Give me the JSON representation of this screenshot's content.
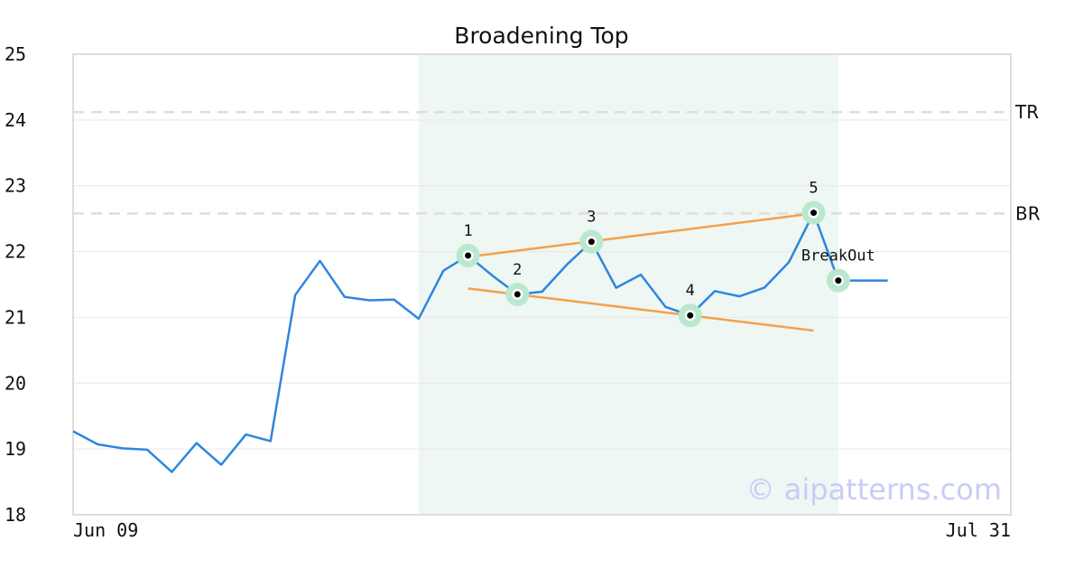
{
  "chart_data": {
    "type": "line",
    "title": "Broadening Top",
    "ylim": [
      18,
      25
    ],
    "yticks": [
      18,
      19,
      20,
      21,
      22,
      23,
      24,
      25
    ],
    "x_tick_labels": [
      "Jun 09",
      "Jul 31"
    ],
    "grid": "horizontal",
    "series": [
      {
        "color": "#2e86de",
        "values": [
          19.27,
          19.07,
          19.01,
          18.99,
          18.65,
          19.09,
          18.76,
          19.22,
          19.12,
          21.34,
          21.86,
          21.31,
          21.26,
          21.27,
          20.98,
          21.71,
          21.94,
          21.63,
          21.35,
          21.39,
          21.8,
          22.15,
          21.45,
          21.65,
          21.16,
          21.03,
          21.4,
          21.32,
          21.45,
          21.84,
          22.59,
          21.56,
          21.56,
          21.56
        ]
      }
    ],
    "highlight_range": {
      "start_index": 14,
      "end_index": 31,
      "color": "#eef7f3"
    },
    "horizontal_lines": [
      {
        "label": "TR",
        "value": 24.12,
        "color": "#dddddd"
      },
      {
        "label": "BR",
        "value": 22.58,
        "color": "#dddddd"
      }
    ],
    "trendlines": [
      {
        "color": "#f5a04a",
        "points": [
          [
            16,
            21.92
          ],
          [
            30,
            22.58
          ]
        ]
      },
      {
        "color": "#f5a04a",
        "points": [
          [
            16,
            21.44
          ],
          [
            30,
            20.8
          ]
        ]
      }
    ],
    "pattern_points": [
      {
        "label": "1",
        "index": 16,
        "value": 21.94
      },
      {
        "label": "2",
        "index": 18,
        "value": 21.35
      },
      {
        "label": "3",
        "index": 21,
        "value": 22.15
      },
      {
        "label": "4",
        "index": 25,
        "value": 21.03
      },
      {
        "label": "5",
        "index": 30,
        "value": 22.59
      },
      {
        "label": "BreakOut",
        "index": 31,
        "value": 21.56
      }
    ],
    "watermark": "© aipatterns.com"
  }
}
